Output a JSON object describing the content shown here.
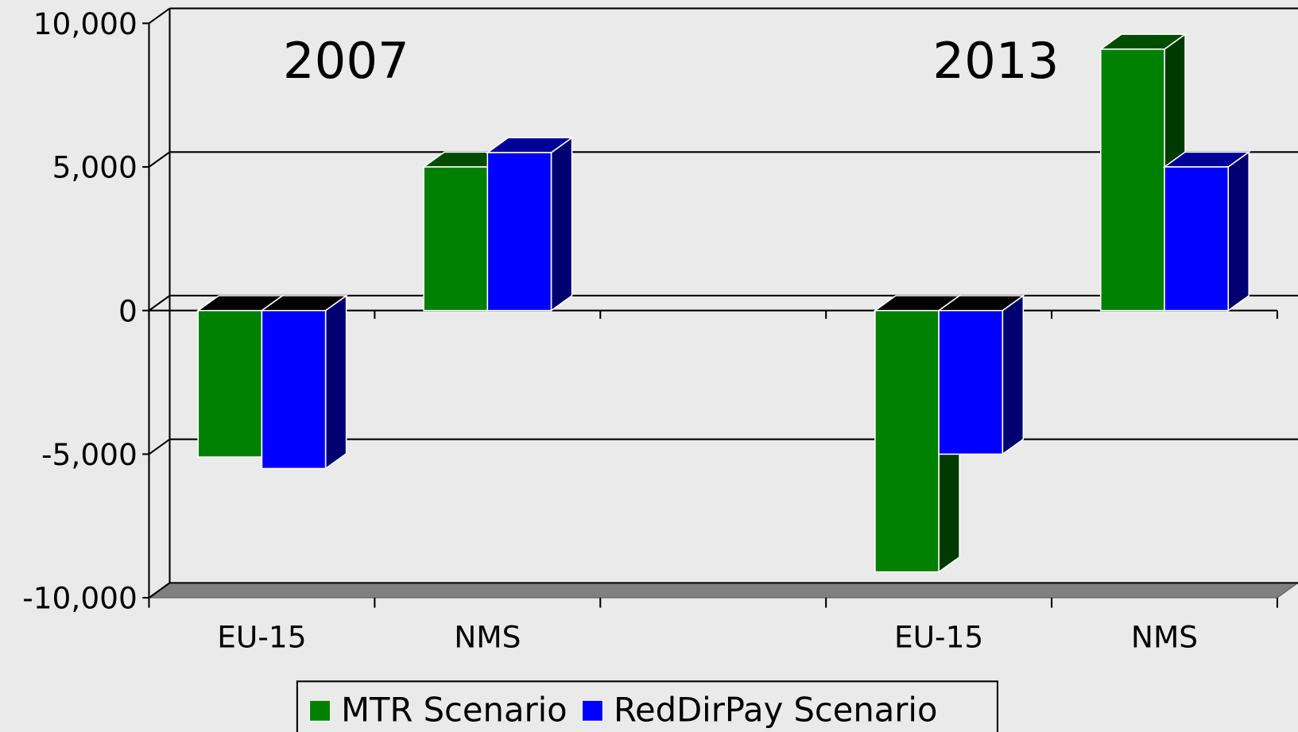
{
  "chart_data": {
    "type": "bar3d",
    "annotations": [
      "2007",
      "2013"
    ],
    "categories": [
      "EU-15",
      "NMS",
      null,
      "EU-15",
      "NMS"
    ],
    "series": [
      {
        "name": "MTR Scenario",
        "color": "#008000",
        "values": [
          -5100,
          5000,
          null,
          -9100,
          9100
        ]
      },
      {
        "name": "RedDirPay Scenario",
        "color": "#0000ff",
        "values": [
          -5500,
          5500,
          null,
          -5000,
          5000
        ]
      }
    ],
    "ylim": [
      -10000,
      10000
    ],
    "yticks": [
      {
        "value": -10000,
        "label": "-10,000"
      },
      {
        "value": -5000,
        "label": "-5,000"
      },
      0,
      {
        "value": 5000,
        "label": "5,000"
      },
      {
        "value": 10000,
        "label": "10,000"
      }
    ],
    "grid": true,
    "legend": "bottom"
  }
}
